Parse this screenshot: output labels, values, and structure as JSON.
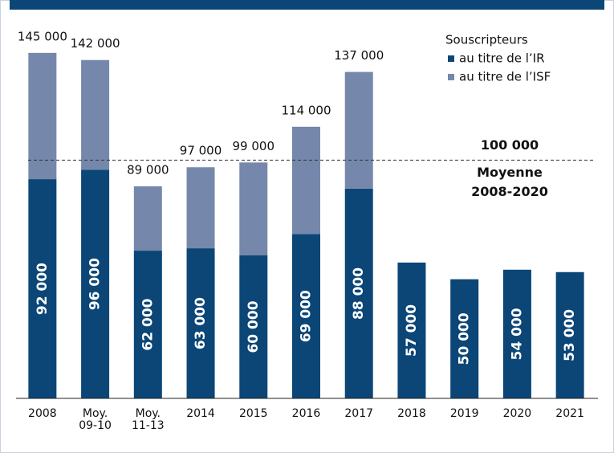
{
  "chart_data": {
    "type": "stacked_bar",
    "categories": [
      "2008",
      "Moy. 09-10",
      "Moy. 11-13",
      "2014",
      "2015",
      "2016",
      "2017",
      "2018",
      "2019",
      "2020",
      "2021"
    ],
    "legend_title": "Souscripteurs",
    "series": [
      {
        "name": "au titre de l’IR",
        "color": "#0b4677",
        "values": [
          92000,
          96000,
          62000,
          63000,
          60000,
          69000,
          88000,
          57000,
          50000,
          54000,
          53000
        ],
        "value_labels": [
          "92 000",
          "96 000",
          "62 000",
          "63 000",
          "60 000",
          "69 000",
          "88 000",
          "57 000",
          "50 000",
          "54 000",
          "53 000"
        ]
      },
      {
        "name": "au titre de l’ISF",
        "color": "#7588ab",
        "values": [
          53000,
          46000,
          27000,
          34000,
          39000,
          45000,
          49000,
          null,
          null,
          null,
          null
        ]
      }
    ],
    "totals": {
      "values": [
        145000,
        142000,
        89000,
        97000,
        99000,
        114000,
        137000,
        null,
        null,
        null,
        null
      ],
      "value_labels": [
        "145 000",
        "142 000",
        "89 000",
        "97 000",
        "99 000",
        "114 000",
        "137 000",
        null,
        null,
        null,
        null
      ]
    },
    "reference_line": {
      "value": 100000,
      "label": "100 000",
      "text": [
        "Moyenne",
        "2008-2020"
      ]
    },
    "ylim": [
      0,
      150000
    ]
  }
}
